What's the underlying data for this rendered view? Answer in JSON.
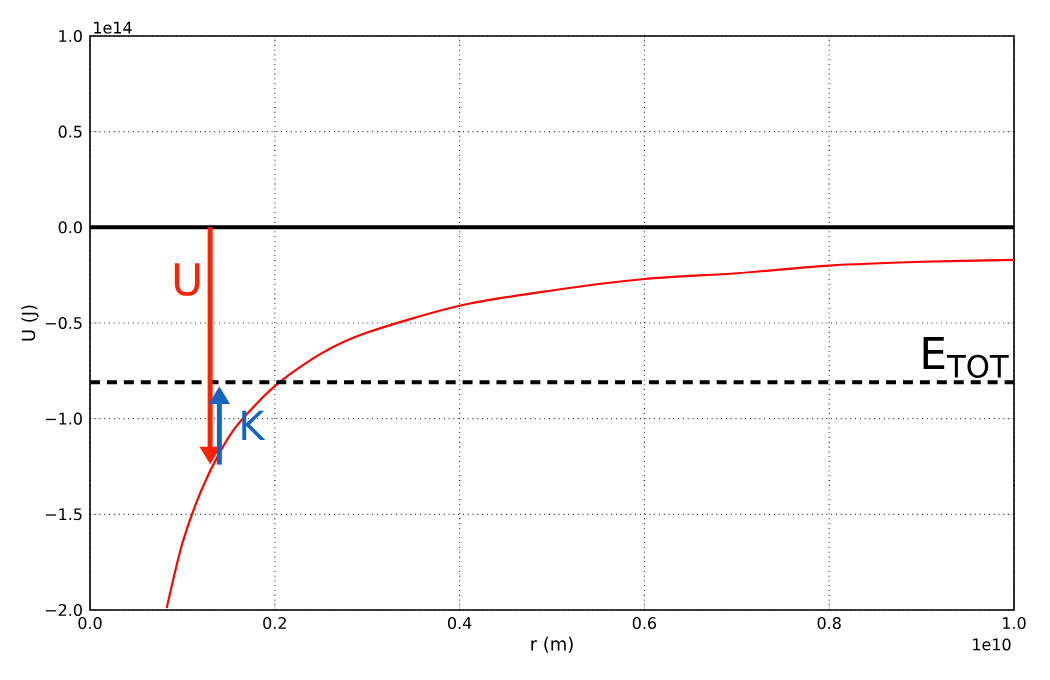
{
  "chart_data": {
    "type": "line",
    "xlabel": "r (m)",
    "ylabel": "U (J)",
    "x": [
      0.083,
      0.1,
      0.12,
      0.14,
      0.16,
      0.2,
      0.25,
      0.3,
      0.4,
      0.5,
      0.6,
      0.7,
      0.8,
      0.9,
      1.0
    ],
    "series": [
      {
        "color": "#ff0000",
        "values": [
          -1.99,
          -1.65,
          -1.38,
          -1.18,
          -1.03,
          -0.83,
          -0.66,
          -0.55,
          -0.41,
          -0.33,
          -0.27,
          -0.24,
          -0.2,
          -0.18,
          -0.17
        ]
      }
    ],
    "xlim": [
      0,
      1.0
    ],
    "ylim": [
      -2.0,
      1.0
    ],
    "xticks": [
      {
        "value": 0,
        "label": "0.0"
      },
      0.2,
      0.4,
      0.6,
      0.8,
      {
        "value": 1,
        "label": "1.0"
      }
    ],
    "yticks": [
      {
        "value": -2,
        "label": "−2.0"
      },
      {
        "value": -1.5,
        "label": "−1.5"
      },
      {
        "value": -1,
        "label": "−1.0"
      },
      {
        "value": -0.5,
        "label": "−0.5"
      },
      {
        "value": 0,
        "label": "0.0"
      },
      0.5,
      {
        "value": 1,
        "label": "1.0"
      }
    ],
    "grid": true,
    "marker": "none",
    "line_style": "solid",
    "ref_lines": [
      {
        "axis": "y",
        "value": 0,
        "color": "#000000",
        "line_style": "solid"
      },
      {
        "axis": "y",
        "value": -0.81,
        "label": "E$_{TOT}$",
        "color": "#000000",
        "line_style": "dashed"
      }
    ],
    "annotations": [
      "1e14",
      "1e10",
      {
        "text": "U",
        "x": 0.13,
        "y": -1.24
      },
      {
        "text": "K",
        "x": 0.14,
        "y": -0.83
      }
    ]
  }
}
